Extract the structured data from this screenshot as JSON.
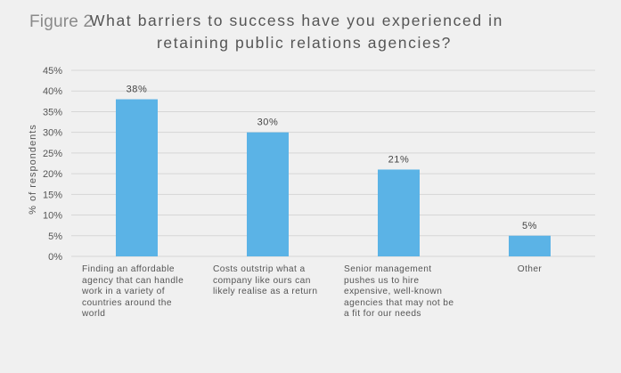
{
  "figure_label": "Figure 2",
  "title_line1": "What barriers to success have you experienced in",
  "title_line2": "retaining public relations agencies?",
  "chart_data": {
    "type": "bar",
    "title": "What barriers to success have you experienced in retaining public relations agencies?",
    "ylabel": "% of respondents",
    "xlabel": "",
    "ylim": [
      0,
      45
    ],
    "yticks": [
      "45%",
      "40%",
      "35%",
      "30%",
      "25%",
      "20%",
      "15%",
      "10%",
      "5%",
      "0%"
    ],
    "categories": [
      "Finding an affordable agency that can handle work in a variety of countries around the world",
      "Costs outstrip what a company like ours can likely realise as a return",
      "Senior management pushes us to hire expensive, well-known agencies that may not be a fit for our needs",
      "Other"
    ],
    "category_lines": [
      [
        "Finding an affordable",
        "agency that can handle",
        "work in a variety of",
        "countries around the",
        "world"
      ],
      [
        "Costs outstrip what a",
        "company like ours can",
        "likely realise as a return"
      ],
      [
        "Senior management",
        "pushes us to hire",
        "expensive, well-known",
        "agencies that may not be",
        "a fit for our needs"
      ],
      [
        "Other"
      ]
    ],
    "values": [
      38,
      30,
      21,
      5
    ],
    "value_labels": [
      "38%",
      "30%",
      "21%",
      "5%"
    ],
    "bar_color": "#5bb3e6",
    "grid": true,
    "legend": "none"
  }
}
